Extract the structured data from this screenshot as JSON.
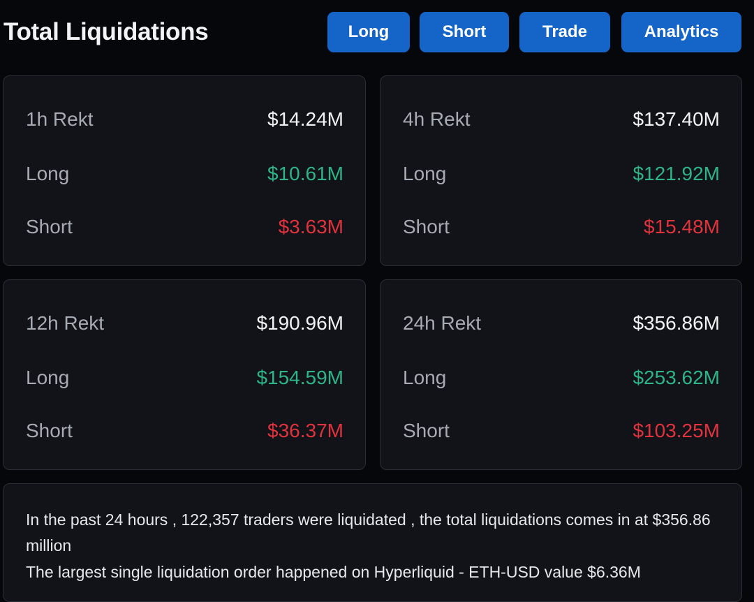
{
  "header": {
    "title": "Total Liquidations",
    "buttons": {
      "long": "Long",
      "short": "Short",
      "trade": "Trade",
      "analytics": "Analytics"
    }
  },
  "colors": {
    "button": "#1565c8",
    "long": "#2fb487",
    "short": "#e0333e",
    "background": "#05070b",
    "card": "#111318"
  },
  "cards": [
    {
      "label": "1h Rekt",
      "total": "$14.24M",
      "long_label": "Long",
      "long": "$10.61M",
      "short_label": "Short",
      "short": "$3.63M"
    },
    {
      "label": "4h Rekt",
      "total": "$137.40M",
      "long_label": "Long",
      "long": "$121.92M",
      "short_label": "Short",
      "short": "$15.48M"
    },
    {
      "label": "12h Rekt",
      "total": "$190.96M",
      "long_label": "Long",
      "long": "$154.59M",
      "short_label": "Short",
      "short": "$36.37M"
    },
    {
      "label": "24h Rekt",
      "total": "$356.86M",
      "long_label": "Long",
      "long": "$253.62M",
      "short_label": "Short",
      "short": "$103.25M"
    }
  ],
  "summary": {
    "line1": "In the past 24 hours , 122,357 traders were liquidated , the total liquidations comes in at $356.86 million",
    "line2": "The largest single liquidation order happened on Hyperliquid - ETH-USD value $6.36M"
  }
}
